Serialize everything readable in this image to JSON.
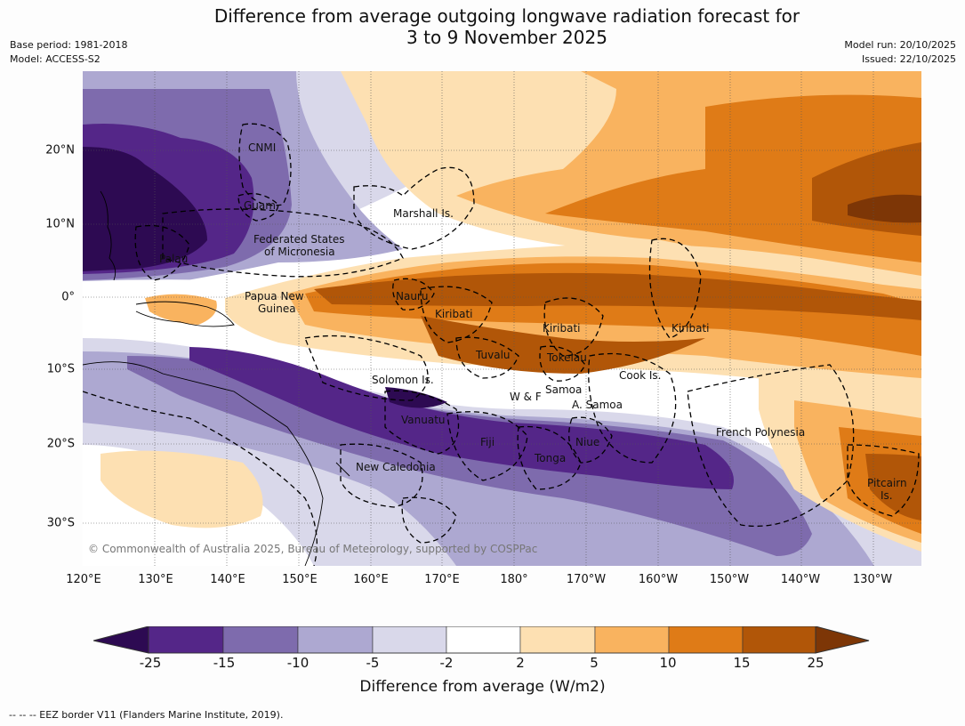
{
  "title": "Difference from average outgoing longwave radiation forecast for\n3 to 9 November 2025",
  "meta": {
    "base_period": "Base period: 1981-2018",
    "model": "Model: ACCESS-S2",
    "model_run": "Model run: 20/10/2025",
    "issued": "Issued: 22/10/2025"
  },
  "map": {
    "lon_ticks": [
      "120°E",
      "130°E",
      "140°E",
      "150°E",
      "160°E",
      "170°E",
      "180°",
      "170°W",
      "160°W",
      "150°W",
      "140°W",
      "130°W"
    ],
    "lat_ticks": [
      "20°N",
      "10°N",
      "0°",
      "10°S",
      "20°S",
      "30°S"
    ],
    "regions": {
      "cnmi": "CNMI",
      "guam": "Guam",
      "marshall": "Marshall Is.",
      "fsm_1": "Federated States",
      "fsm_2": "of Micronesia",
      "palau": "Palau",
      "png_1": "Papua New",
      "png_2": "Guinea",
      "nauru": "Nauru",
      "kiribati_w": "Kiribati",
      "kiribati_c": "Kiribati",
      "kiribati_e": "Kiribati",
      "tuvalu": "Tuvalu",
      "tokelau": "Tokelau",
      "cook": "Cook Is.",
      "solomon": "Solomon Is.",
      "wf": "W & F",
      "samoa": "Samoa",
      "asamoa": "A. Samoa",
      "vanuatu": "Vanuatu",
      "fiji": "Fiji",
      "niue": "Niue",
      "tonga": "Tonga",
      "french_polynesia": "French Polynesia",
      "new_caledonia": "New Caledonia",
      "pitcairn_1": "Pitcairn",
      "pitcairn_2": "Is."
    },
    "copyright": "© Commonwealth of Australia 2025, Bureau of Meteorology, supported by COSPPac"
  },
  "legend": {
    "title": "Difference from average (W/m2)",
    "tick_labels": [
      "-25",
      "-15",
      "-10",
      "-5",
      "-2",
      "2",
      "5",
      "10",
      "15",
      "25"
    ],
    "colors": [
      "#2d0a52",
      "#542688",
      "#7e6bad",
      "#ada8d1",
      "#d9d8ea",
      "#ffffff",
      "#fde0b2",
      "#f9b35f",
      "#df7b17",
      "#b15608",
      "#7d3606"
    ]
  },
  "footer": "--  --  -- EEZ border V11 (Flanders Marine Institute, 2019)."
}
